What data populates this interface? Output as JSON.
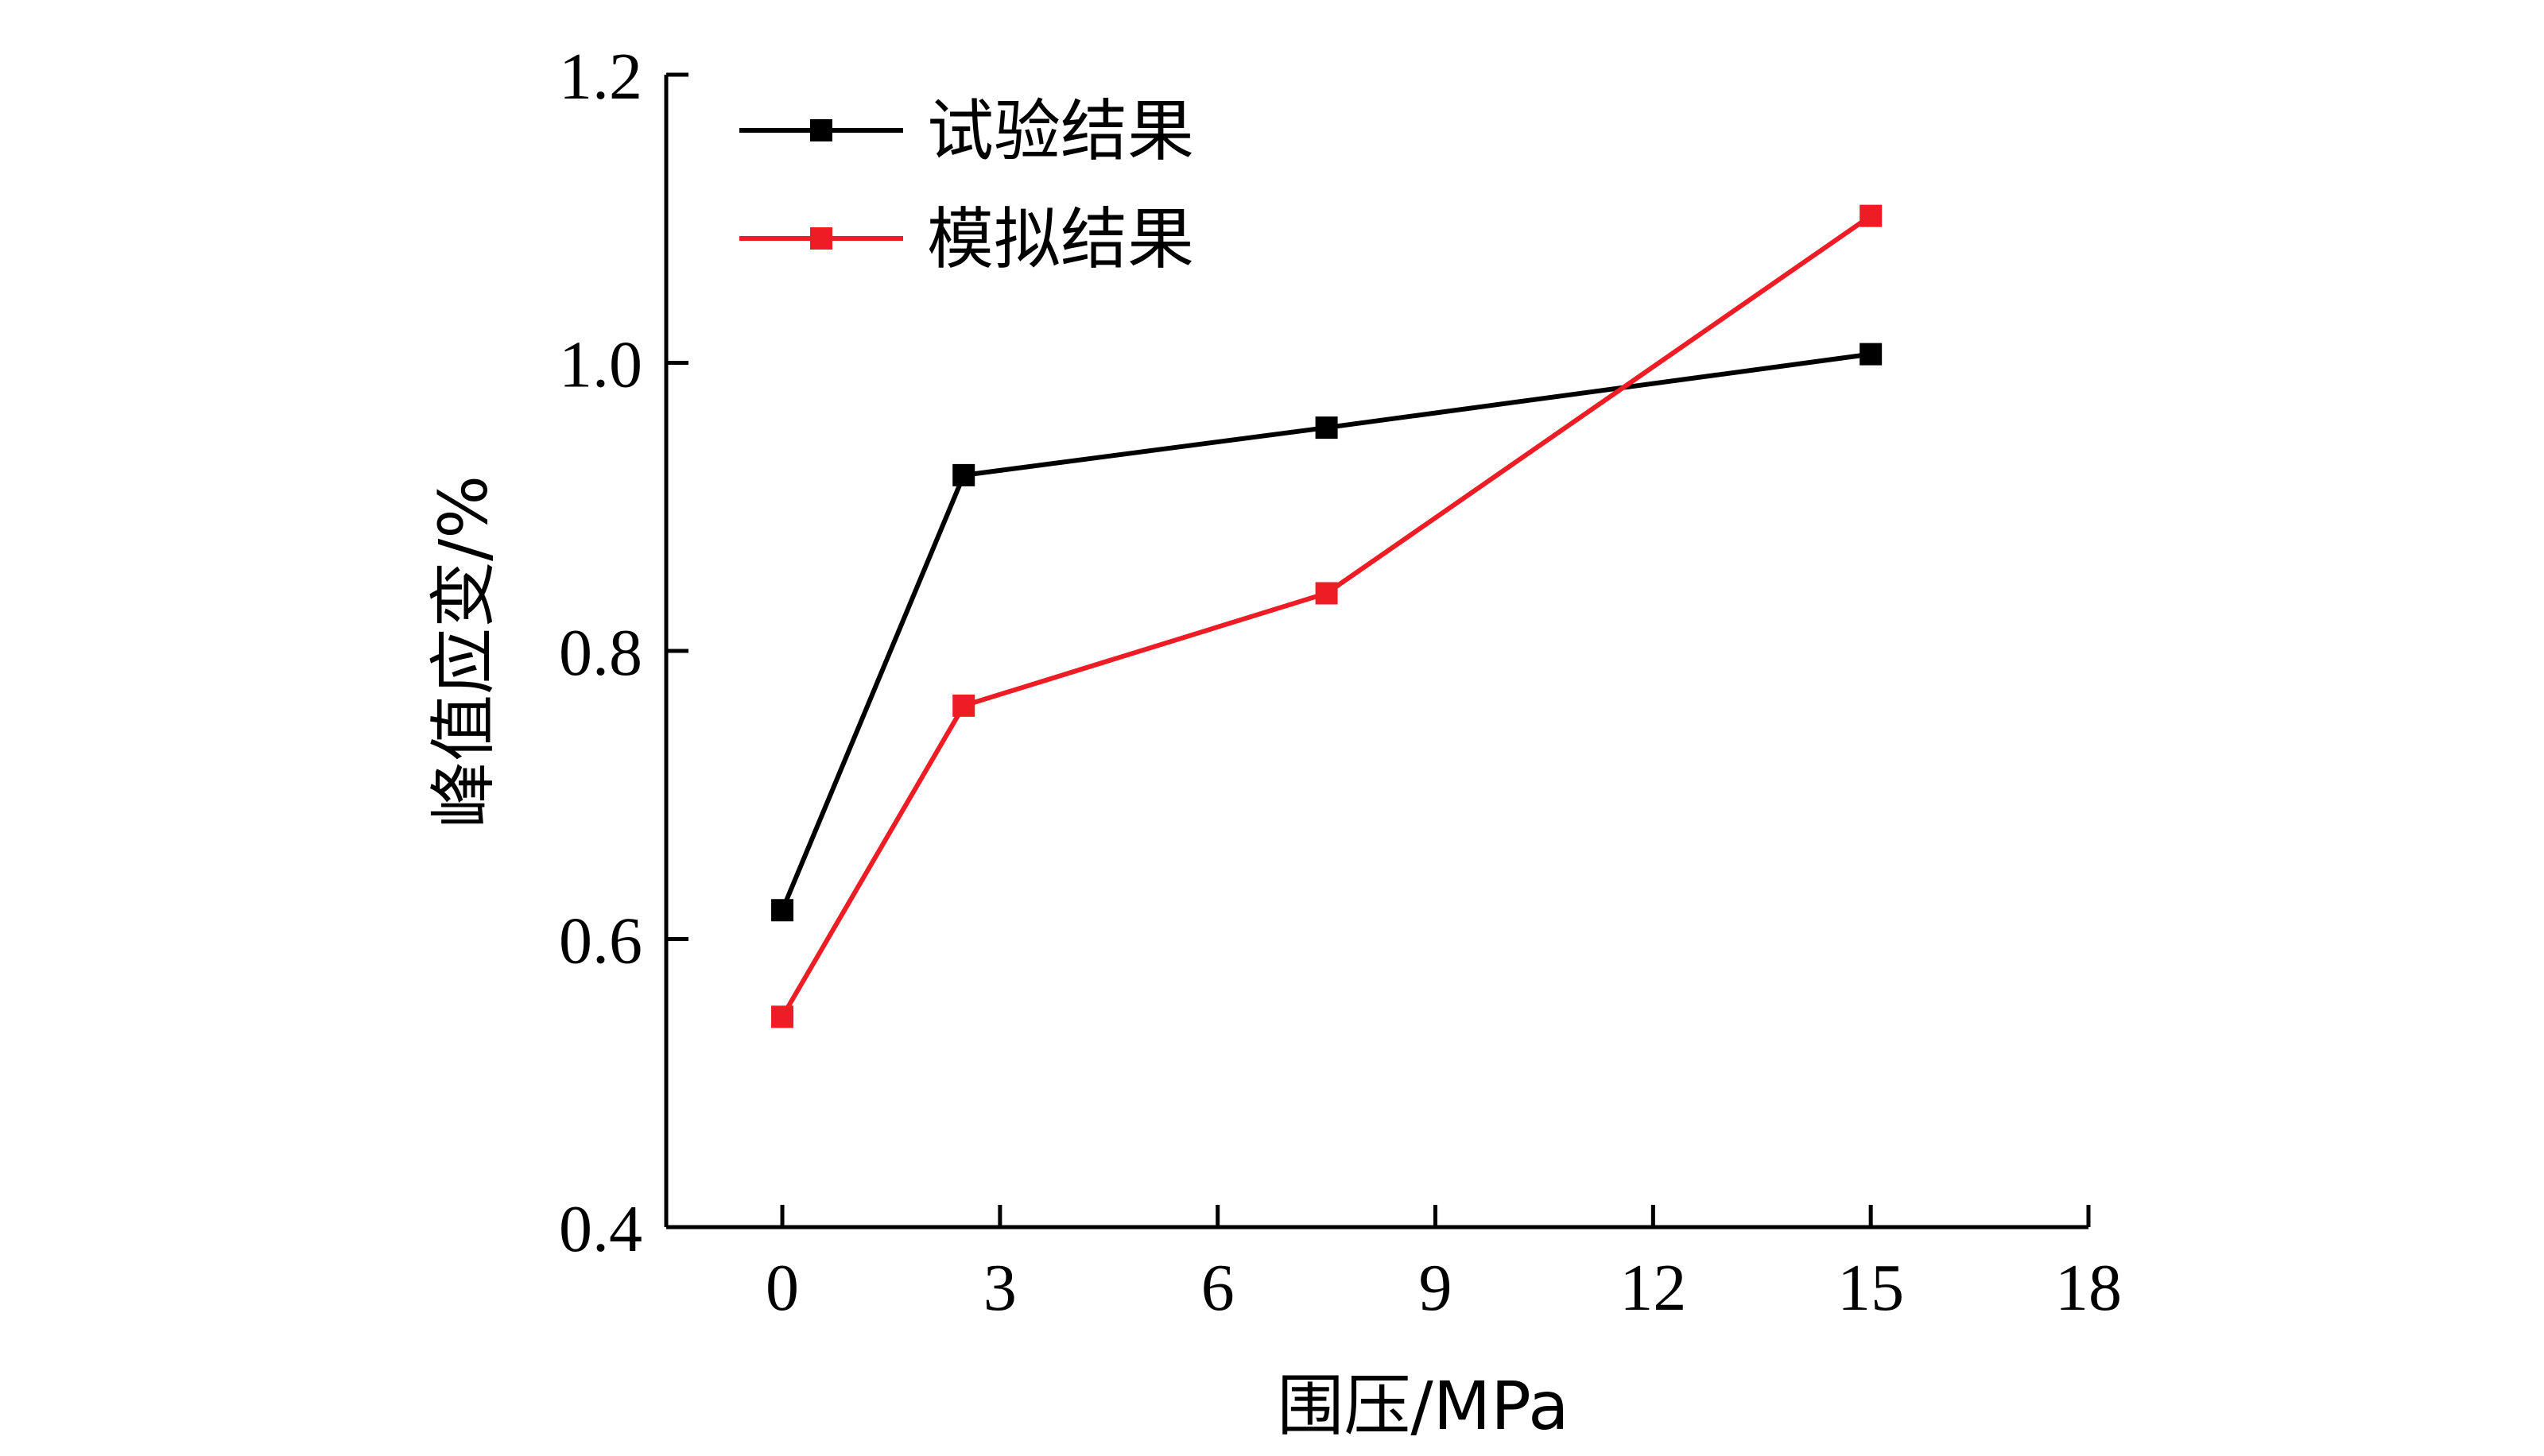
{
  "chart_data": {
    "type": "line",
    "xlabel": "围压/MPa",
    "ylabel": "峰值应变/%",
    "xlim": [
      -1.6,
      18
    ],
    "ylim": [
      0.4,
      1.2
    ],
    "x_ticks": [
      0,
      3,
      6,
      9,
      12,
      15,
      18
    ],
    "y_ticks": [
      0.4,
      0.6,
      0.8,
      1.0,
      1.2
    ],
    "x_tick_labels": [
      "0",
      "3",
      "6",
      "9",
      "12",
      "15",
      "18"
    ],
    "y_tick_labels": [
      "0.4",
      "0.6",
      "0.8",
      "1.0",
      "1.2"
    ],
    "legend_position": "top-left",
    "series": [
      {
        "name": "试验结果",
        "color": "#000000",
        "x": [
          0,
          2.5,
          7.5,
          15
        ],
        "y": [
          0.62,
          0.922,
          0.955,
          1.006
        ]
      },
      {
        "name": "模拟结果",
        "color": "#ee1c25",
        "x": [
          0,
          2.5,
          7.5,
          15
        ],
        "y": [
          0.546,
          0.762,
          0.84,
          1.102
        ]
      }
    ]
  }
}
